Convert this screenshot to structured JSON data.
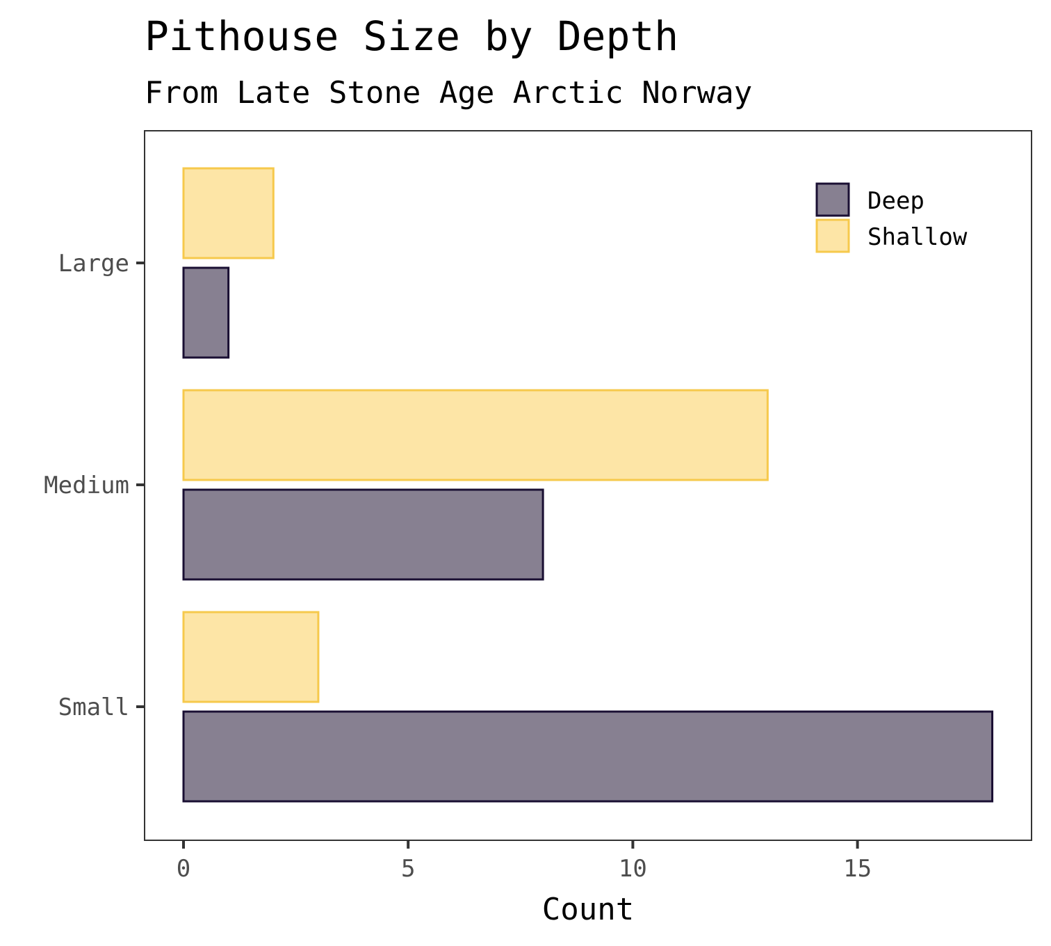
{
  "chart_data": {
    "type": "bar",
    "orientation": "horizontal",
    "title": "Pithouse Size by Depth",
    "subtitle": "From Late Stone Age Arctic Norway",
    "xlabel": "Count",
    "ylabel": "",
    "categories": [
      "Large",
      "Medium",
      "Small"
    ],
    "series": [
      {
        "name": "Shallow",
        "values": [
          2,
          13,
          3
        ],
        "fill": "#fde5a6",
        "stroke": "#f6c94c"
      },
      {
        "name": "Deep",
        "values": [
          1,
          8,
          18
        ],
        "fill": "#878091",
        "stroke": "#1a0f33"
      }
    ],
    "xlim": [
      -0.9,
      18.9
    ],
    "xticks": [
      0,
      5,
      10,
      15
    ],
    "grid": false,
    "legend_position": "top-right"
  }
}
